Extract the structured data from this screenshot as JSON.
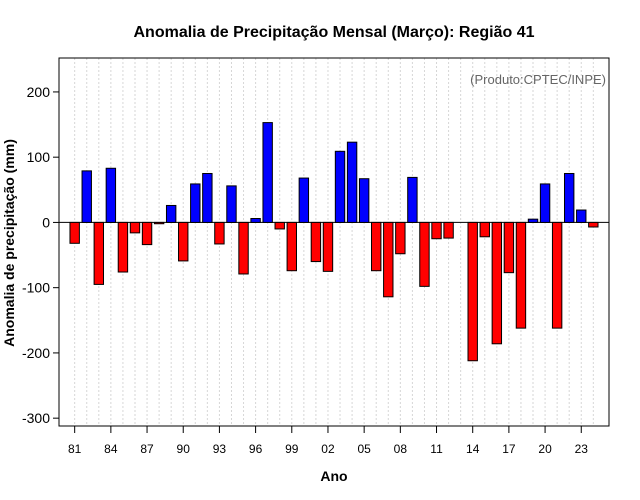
{
  "chart_data": {
    "type": "bar",
    "title": "Anomalia de Precipitação Mensal (Março): Região 41",
    "xlabel": "Ano",
    "ylabel": "Anomalia de precipitação (mm)",
    "annotation": "(Produto:CPTEC/INPE)",
    "ylim": [
      -312,
      252
    ],
    "xlim": [
      1979.7,
      2025.3
    ],
    "grid": true,
    "y_ticks": [
      -300,
      -200,
      -100,
      0,
      100,
      200
    ],
    "x_ticks": [
      1981,
      1984,
      1987,
      1990,
      1993,
      1996,
      1999,
      2002,
      2005,
      2008,
      2011,
      2014,
      2017,
      2020,
      2023
    ],
    "x_tick_labels": [
      "81",
      "84",
      "87",
      "90",
      "93",
      "96",
      "99",
      "02",
      "05",
      "08",
      "11",
      "14",
      "17",
      "20",
      "23"
    ],
    "positive_color": "#0000ff",
    "negative_color": "#ff0000",
    "years": [
      1981,
      1982,
      1983,
      1984,
      1985,
      1986,
      1987,
      1988,
      1989,
      1990,
      1991,
      1992,
      1993,
      1994,
      1995,
      1996,
      1997,
      1998,
      1999,
      2000,
      2001,
      2002,
      2003,
      2004,
      2005,
      2006,
      2007,
      2008,
      2009,
      2010,
      2011,
      2012,
      2013,
      2014,
      2015,
      2016,
      2017,
      2018,
      2019,
      2020,
      2021,
      2022,
      2023,
      2024
    ],
    "values": [
      -32,
      79,
      -95,
      83,
      -76,
      -16,
      -34,
      -2,
      26,
      -59,
      59,
      75,
      -33,
      56,
      -79,
      6,
      153,
      -10,
      -74,
      68,
      -60,
      -75,
      109,
      123,
      67,
      -74,
      -114,
      -48,
      69,
      -98,
      -25,
      -24,
      0,
      -212,
      -22,
      -186,
      -77,
      -162,
      5,
      59,
      -162,
      75,
      19,
      -7
    ]
  }
}
